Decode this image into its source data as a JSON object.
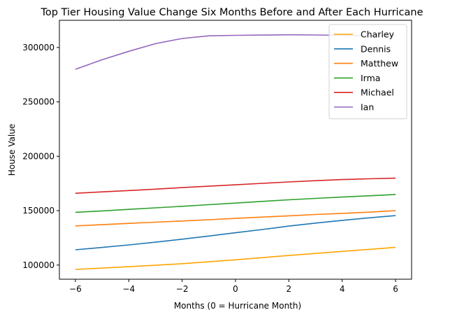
{
  "chart_data": {
    "type": "line",
    "title": "Top Tier Housing Value Change Six Months Before and After Each Hurricane",
    "xlabel": "Months (0 = Hurricane Month)",
    "ylabel": "House Value",
    "x": [
      -6,
      -5,
      -4,
      -3,
      -2,
      -1,
      0,
      1,
      2,
      3,
      4,
      5,
      6
    ],
    "xlim": [
      -6.6,
      6.6
    ],
    "ylim": [
      87000,
      325000
    ],
    "xticks": [
      -6,
      -4,
      -2,
      0,
      2,
      4,
      6
    ],
    "xtick_labels": [
      "−6",
      "−4",
      "−2",
      "0",
      "2",
      "4",
      "6"
    ],
    "yticks": [
      100000,
      150000,
      200000,
      250000,
      300000
    ],
    "ytick_labels": [
      "100000",
      "150000",
      "200000",
      "250000",
      "300000"
    ],
    "grid": false,
    "legend_position": "top-right",
    "series": [
      {
        "name": "Charley",
        "color": "#ffa500",
        "values": [
          96000,
          97200,
          98500,
          99800,
          101300,
          103000,
          104800,
          106800,
          108800,
          110700,
          112600,
          114400,
          116300
        ]
      },
      {
        "name": "Dennis",
        "color": "#1f77b4",
        "values": [
          114000,
          116200,
          118500,
          121000,
          123800,
          126700,
          129700,
          132700,
          135800,
          138600,
          141100,
          143400,
          145500
        ]
      },
      {
        "name": "Matthew",
        "color": "#ff7f0e",
        "values": [
          136000,
          137100,
          138300,
          139400,
          140500,
          141700,
          142900,
          144100,
          145300,
          146500,
          147500,
          148600,
          150000
        ]
      },
      {
        "name": "Irma",
        "color": "#2ca02c",
        "values": [
          148500,
          149800,
          151200,
          152600,
          154000,
          155500,
          157000,
          158500,
          160000,
          161300,
          162500,
          163700,
          164900
        ]
      },
      {
        "name": "Michael",
        "color": "#d62728",
        "values": [
          166000,
          167300,
          168500,
          169800,
          171200,
          172500,
          173800,
          175100,
          176400,
          177600,
          178600,
          179300,
          179900
        ]
      },
      {
        "name": "Ian",
        "color": "#9467bd",
        "values": [
          280000,
          288700,
          296500,
          303500,
          308300,
          310700,
          311200,
          311400,
          311700,
          311500,
          311200,
          311000,
          311300
        ]
      }
    ]
  }
}
